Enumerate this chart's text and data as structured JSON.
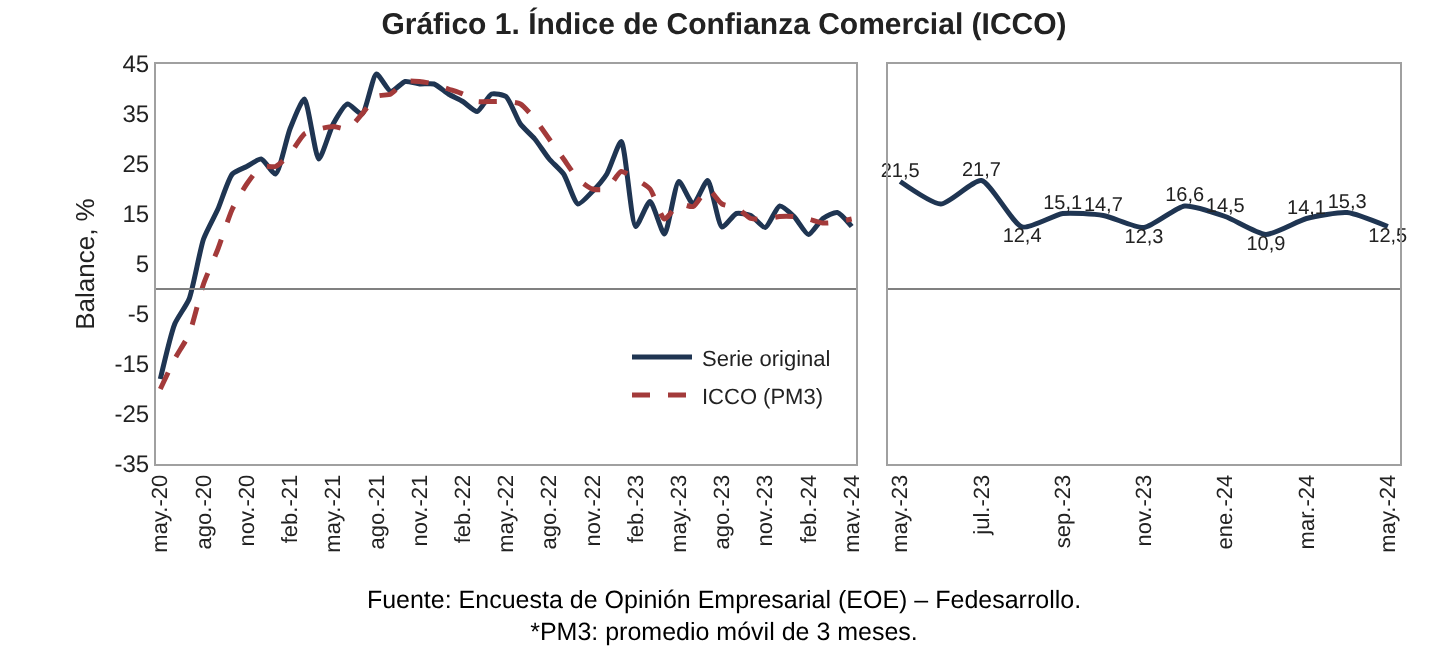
{
  "chart_data": [
    {
      "type": "line",
      "title": "Gráfico 1. Índice de Confianza Comercial (ICCO)",
      "ylabel": "Balance, %",
      "categories": [
        "may.-20",
        null,
        null,
        "ago.-20",
        null,
        null,
        "nov.-20",
        null,
        null,
        "feb.-21",
        null,
        null,
        "may.-21",
        null,
        null,
        "ago.-21",
        null,
        null,
        "nov.-21",
        null,
        null,
        "feb.-22",
        null,
        null,
        "may.-22",
        null,
        null,
        "ago.-22",
        null,
        null,
        "nov.-22",
        null,
        null,
        "feb.-23",
        null,
        null,
        "may.-23",
        null,
        null,
        "ago.-23",
        null,
        null,
        "nov.-23",
        null,
        null,
        "feb.-24",
        null,
        null,
        "may.-24"
      ],
      "series": [
        {
          "name": "Serie original",
          "color": "#1f3552",
          "line_style": "solid",
          "values": [
            -18,
            -7,
            -2,
            10,
            16,
            23,
            24.5,
            26,
            23,
            32,
            38,
            26,
            33,
            37,
            35,
            43,
            39.5,
            41.5,
            41,
            41,
            39,
            37.5,
            35.5,
            39,
            38.5,
            33,
            30,
            26,
            23,
            17,
            19.5,
            23,
            29.5,
            12.5,
            17.5,
            11,
            21.5,
            17,
            21.7,
            12.4,
            15.1,
            14.7,
            12.3,
            16.6,
            14.5,
            10.9,
            14.1,
            15.3,
            12.5
          ]
        },
        {
          "name": "ICCO (PM3)",
          "color": "#a33a3a",
          "line_style": "dashed",
          "values": [
            -20,
            -14,
            -9,
            1,
            8,
            16,
            21,
            24.5,
            24.5,
            27,
            31,
            32,
            32.5,
            32,
            35,
            38.5,
            39,
            41.5,
            41.5,
            41,
            40,
            39,
            37.5,
            37.5,
            37.5,
            37,
            34,
            30,
            26,
            22,
            20,
            20,
            23.5,
            22,
            20,
            14,
            17,
            16.5,
            20,
            17,
            16.3,
            14.1,
            14,
            14.5,
            14.5,
            14,
            13.2,
            13.4,
            14
          ]
        }
      ],
      "ylim": [
        -35,
        45
      ],
      "yticks": [
        -35,
        -25,
        -15,
        -5,
        5,
        15,
        25,
        35,
        45
      ],
      "grid": false,
      "legend": "bottom right",
      "ref_lines": [
        {
          "axis": "y",
          "value": 0,
          "color": "#808080"
        }
      ],
      "annotations": [
        "Fuente: Encuesta de Opinión Empresarial (EOE) – Fedesarrollo.",
        "*PM3: promedio móvil de 3 meses."
      ]
    },
    {
      "type": "line",
      "categories": [
        "may.-23",
        null,
        "jul.-23",
        null,
        "sep.-23",
        null,
        "nov.-23",
        null,
        "ene.-24",
        null,
        "mar.-24",
        null,
        "may.-24"
      ],
      "series": [
        {
          "color": "#1f3552",
          "values": [
            21.5,
            17,
            21.7,
            12.4,
            15.1,
            14.7,
            12.3,
            16.6,
            14.5,
            10.9,
            14.1,
            15.3,
            12.5
          ],
          "value_labels": [
            "21,5",
            null,
            "21,7",
            "12,4",
            "15,1",
            "14,7",
            "12,3",
            "16,6",
            "14,5",
            "10,9",
            "14,1",
            "15,3",
            "12,5"
          ]
        }
      ],
      "ylim": [
        -35,
        45
      ],
      "tick_labels": "x",
      "grid": false,
      "legend": false,
      "ref_lines": [
        {
          "axis": "y",
          "value": 0,
          "color": "#808080"
        }
      ]
    }
  ]
}
